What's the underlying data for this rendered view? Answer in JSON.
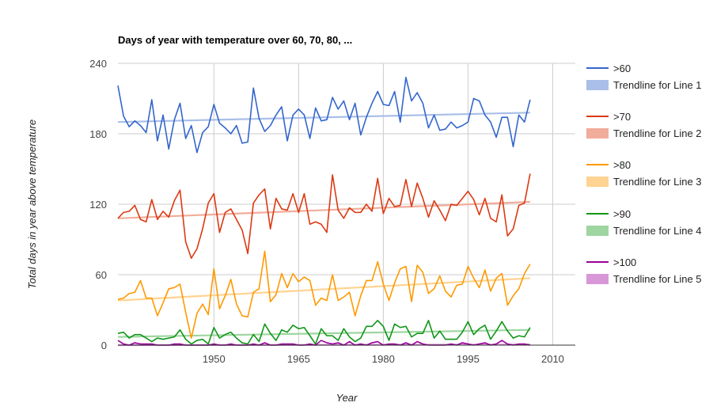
{
  "chart_data": {
    "type": "line",
    "title": "Days of year with temperature over 60, 70, 80, ...",
    "xlabel": "Year",
    "ylabel": "Total days in year above temperature",
    "xlim": [
      1933,
      2014
    ],
    "ylim": [
      0,
      240
    ],
    "x_ticks": [
      "1950",
      "1965",
      "1980",
      "1995",
      "2010"
    ],
    "y_ticks": [
      "0",
      "60",
      "120",
      "180",
      "240"
    ],
    "gridlines": true,
    "legend_position": "right",
    "x_start": 1933,
    "series": [
      {
        "name": ">60",
        "color": "#3366cc",
        "values": [
          221,
          195,
          186,
          191,
          187,
          181,
          209,
          174,
          196,
          167,
          192,
          206,
          176,
          187,
          164,
          181,
          186,
          205,
          189,
          185,
          180,
          187,
          172,
          173,
          219,
          193,
          182,
          187,
          196,
          203,
          174,
          196,
          201,
          196,
          176,
          202,
          191,
          192,
          211,
          201,
          208,
          192,
          206,
          179,
          194,
          206,
          216,
          205,
          204,
          216,
          190,
          228,
          208,
          215,
          206,
          185,
          196,
          183,
          184,
          190,
          185,
          187,
          190,
          210,
          208,
          196,
          190,
          177,
          194,
          194,
          169,
          196,
          190,
          209
        ],
        "trendline": {
          "name": "Trendline for Line 1",
          "color": "#aabfe8",
          "start": 190,
          "end": 198
        }
      },
      {
        "name": ">70",
        "color": "#dc3912",
        "values": [
          108,
          113,
          114,
          119,
          107,
          105,
          124,
          107,
          114,
          109,
          123,
          132,
          88,
          74,
          82,
          99,
          121,
          129,
          96,
          113,
          116,
          107,
          98,
          78,
          121,
          128,
          133,
          99,
          125,
          116,
          115,
          129,
          113,
          129,
          103,
          105,
          103,
          96,
          145,
          115,
          108,
          117,
          113,
          113,
          120,
          114,
          142,
          112,
          125,
          118,
          119,
          141,
          118,
          138,
          125,
          109,
          123,
          115,
          106,
          120,
          119,
          125,
          131,
          124,
          111,
          125,
          108,
          105,
          128,
          93,
          99,
          119,
          121,
          146
        ],
        "trendline": {
          "name": "Trendline for Line 2",
          "color": "#f1ac9a",
          "start": 108,
          "end": 122
        }
      },
      {
        "name": ">80",
        "color": "#ff9900",
        "values": [
          39,
          40,
          44,
          45,
          55,
          40,
          40,
          25,
          36,
          48,
          49,
          52,
          28,
          6,
          27,
          35,
          26,
          65,
          31,
          42,
          56,
          35,
          25,
          24,
          45,
          48,
          80,
          37,
          43,
          61,
          49,
          61,
          54,
          58,
          55,
          34,
          40,
          38,
          60,
          38,
          41,
          45,
          25,
          42,
          55,
          55,
          71,
          52,
          38,
          53,
          65,
          67,
          37,
          68,
          62,
          44,
          48,
          59,
          46,
          41,
          51,
          52,
          67,
          57,
          49,
          64,
          46,
          57,
          61,
          34,
          42,
          48,
          61,
          69
        ],
        "trendline": {
          "name": "Trendline for Line 3",
          "color": "#ffd391",
          "start": 38,
          "end": 57
        }
      },
      {
        "name": ">90",
        "color": "#109618",
        "values": [
          10,
          11,
          6,
          9,
          9,
          6,
          3,
          6,
          5,
          6,
          7,
          13,
          5,
          1,
          4,
          5,
          1,
          15,
          6,
          9,
          11,
          6,
          2,
          1,
          9,
          3,
          18,
          10,
          4,
          13,
          11,
          17,
          14,
          15,
          8,
          1,
          14,
          8,
          8,
          4,
          14,
          7,
          3,
          6,
          16,
          16,
          21,
          16,
          4,
          18,
          15,
          16,
          7,
          10,
          10,
          21,
          6,
          12,
          5,
          5,
          5,
          11,
          20,
          9,
          14,
          17,
          5,
          12,
          20,
          12,
          6,
          8,
          7,
          15
        ],
        "trendline": {
          "name": "Trendline for Line 4",
          "color": "#9fd5a0",
          "start": 7,
          "end": 13
        }
      },
      {
        "name": ">100",
        "color": "#990099",
        "values": [
          4,
          1,
          0,
          2,
          1,
          1,
          1,
          0,
          0,
          0,
          1,
          1,
          0,
          0,
          0,
          0,
          0,
          1,
          0,
          0,
          1,
          0,
          0,
          0,
          1,
          0,
          2,
          0,
          0,
          1,
          1,
          1,
          0,
          0,
          1,
          0,
          4,
          2,
          1,
          2,
          0,
          3,
          0,
          1,
          0,
          2,
          3,
          0,
          1,
          1,
          0,
          2,
          0,
          3,
          1,
          0,
          0,
          0,
          0,
          1,
          0,
          2,
          1,
          0,
          1,
          2,
          0,
          1,
          4,
          1,
          0,
          1,
          1,
          0
        ],
        "trendline": {
          "name": "Trendline for Line 5",
          "color": "#d898d8",
          "start": 0,
          "end": 0.5
        }
      }
    ]
  }
}
